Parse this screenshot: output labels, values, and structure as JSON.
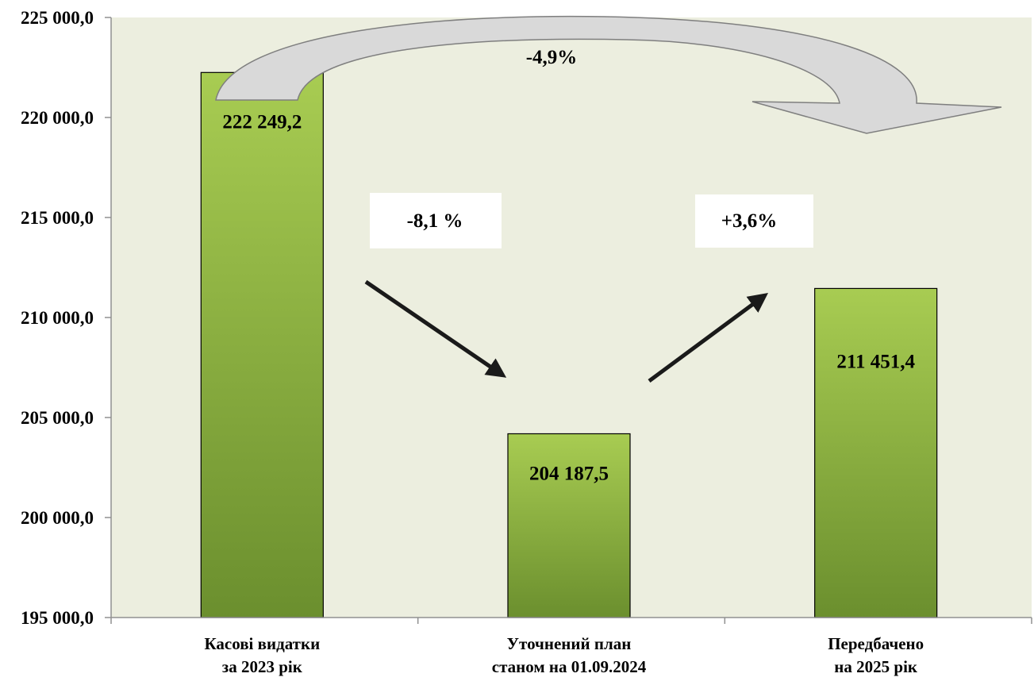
{
  "chart_data": {
    "type": "bar",
    "categories": [
      [
        "Касові видатки",
        "за 2023 рік"
      ],
      [
        "Уточнений план",
        "станом на 01.09.2024"
      ],
      [
        "Передбачено",
        "на 2025 рік"
      ]
    ],
    "values": [
      222249.2,
      204187.5,
      211451.4
    ],
    "value_labels": [
      "222 249,2",
      "204 187,5",
      "211 451,4"
    ],
    "ylim": [
      195000,
      225000
    ],
    "yticks": [
      195000,
      200000,
      205000,
      210000,
      215000,
      220000,
      225000
    ],
    "ytick_labels": [
      "195 000,0",
      "200 000,0",
      "205 000,0",
      "210 000,0",
      "215 000,0",
      "220 000,0",
      "225 000,0"
    ],
    "grid": false,
    "annotations": {
      "change_2023_to_2024": "-8,1 %",
      "change_2024_to_2025": "+3,6%",
      "change_2023_to_2025": "-4,9%"
    },
    "colors": {
      "plot_background": "#eceedf",
      "bar_top": "#a8cc52",
      "bar_bottom": "#6b8f2e",
      "axis": "#909090",
      "arrow": "#1a1a1a",
      "big_arrow_fill": "#d9d9d9"
    }
  }
}
